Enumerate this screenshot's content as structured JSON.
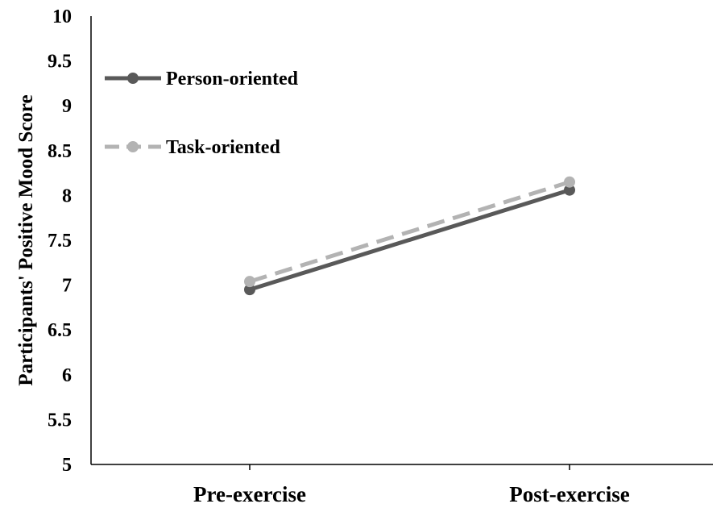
{
  "chart_data": {
    "type": "line",
    "title": "",
    "xlabel": "",
    "ylabel": "Participants' Positive Mood Score",
    "categories": [
      "Pre-exercise",
      "Post-exercise"
    ],
    "ylim": [
      5,
      10
    ],
    "yticks": [
      "5",
      "5.5",
      "6",
      "6.5",
      "7",
      "7.5",
      "8",
      "8.5",
      "9",
      "9.5",
      "10"
    ],
    "grid": false,
    "legend_position": "top-left",
    "series": [
      {
        "name": "Person-oriented",
        "values": [
          6.95,
          8.06
        ],
        "color": "#595959",
        "line_style": "solid",
        "marker": "circle"
      },
      {
        "name": "Task-oriented",
        "values": [
          7.04,
          8.15
        ],
        "color": "#b3b3b3",
        "line_style": "dashed",
        "marker": "circle"
      }
    ]
  }
}
